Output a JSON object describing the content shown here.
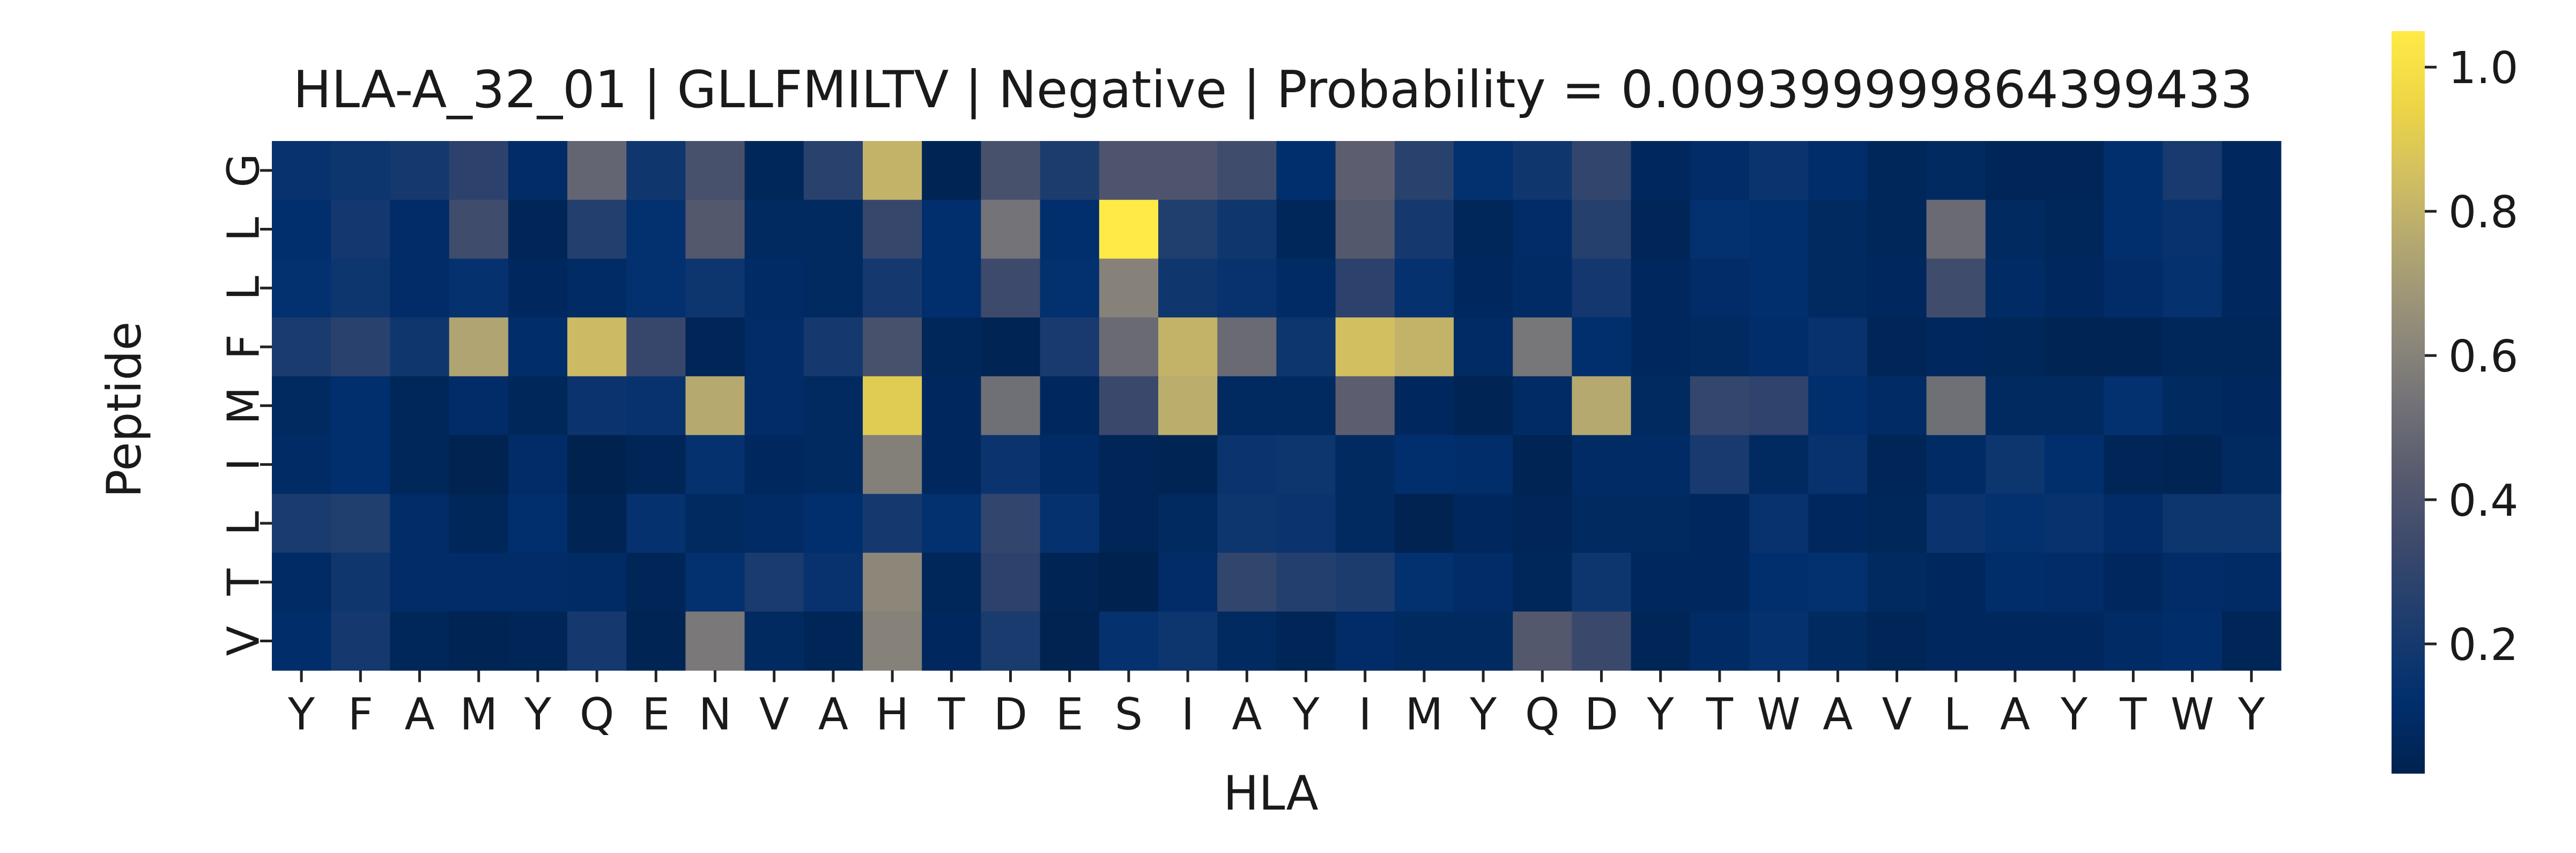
{
  "chart_data": {
    "type": "heatmap",
    "title": "HLA-A_32_01 | GLLFMILTV | Negative | Probability = 0.009399999864399433",
    "xlabel": "HLA",
    "ylabel": "Peptide",
    "x_tick_labels": [
      "Y",
      "F",
      "A",
      "M",
      "Y",
      "Q",
      "E",
      "N",
      "V",
      "A",
      "H",
      "T",
      "D",
      "E",
      "S",
      "I",
      "A",
      "Y",
      "I",
      "M",
      "Y",
      "Q",
      "D",
      "Y",
      "T",
      "W",
      "A",
      "V",
      "L",
      "A",
      "Y",
      "T",
      "W",
      "Y"
    ],
    "y_tick_labels": [
      "G",
      "L",
      "L",
      "F",
      "M",
      "I",
      "L",
      "T",
      "V"
    ],
    "colormap": "cividis",
    "colorbar": {
      "range": [
        0.02,
        1.05
      ],
      "ticks": [
        0.2,
        0.4,
        0.6,
        0.8,
        1.0
      ],
      "tick_labels": [
        "0.2",
        "0.4",
        "0.6",
        "0.8",
        "1.0"
      ]
    },
    "values": [
      [
        0.15,
        0.17,
        0.2,
        0.28,
        0.1,
        0.48,
        0.18,
        0.38,
        0.06,
        0.27,
        0.8,
        0.04,
        0.38,
        0.23,
        0.4,
        0.4,
        0.35,
        0.12,
        0.45,
        0.27,
        0.13,
        0.18,
        0.3,
        0.07,
        0.1,
        0.16,
        0.11,
        0.06,
        0.08,
        0.05,
        0.05,
        0.12,
        0.21,
        0.07
      ],
      [
        0.12,
        0.19,
        0.1,
        0.35,
        0.05,
        0.25,
        0.13,
        0.42,
        0.08,
        0.08,
        0.32,
        0.12,
        0.54,
        0.12,
        1.05,
        0.24,
        0.18,
        0.06,
        0.42,
        0.2,
        0.06,
        0.1,
        0.26,
        0.05,
        0.13,
        0.12,
        0.08,
        0.06,
        0.5,
        0.08,
        0.06,
        0.12,
        0.15,
        0.07
      ],
      [
        0.13,
        0.17,
        0.1,
        0.14,
        0.07,
        0.09,
        0.13,
        0.17,
        0.09,
        0.08,
        0.2,
        0.12,
        0.34,
        0.13,
        0.6,
        0.18,
        0.15,
        0.09,
        0.28,
        0.14,
        0.07,
        0.09,
        0.19,
        0.07,
        0.1,
        0.12,
        0.08,
        0.07,
        0.35,
        0.09,
        0.07,
        0.1,
        0.14,
        0.07
      ],
      [
        0.22,
        0.27,
        0.18,
        0.74,
        0.11,
        0.83,
        0.32,
        0.05,
        0.1,
        0.2,
        0.38,
        0.06,
        0.04,
        0.21,
        0.5,
        0.8,
        0.5,
        0.17,
        0.85,
        0.8,
        0.09,
        0.55,
        0.12,
        0.07,
        0.08,
        0.11,
        0.15,
        0.05,
        0.07,
        0.06,
        0.04,
        0.04,
        0.06,
        0.06
      ],
      [
        0.08,
        0.12,
        0.06,
        0.1,
        0.06,
        0.16,
        0.15,
        0.76,
        0.1,
        0.08,
        0.9,
        0.07,
        0.52,
        0.07,
        0.33,
        0.78,
        0.08,
        0.08,
        0.45,
        0.07,
        0.04,
        0.09,
        0.76,
        0.08,
        0.31,
        0.29,
        0.12,
        0.09,
        0.52,
        0.08,
        0.08,
        0.13,
        0.08,
        0.07
      ],
      [
        0.09,
        0.12,
        0.06,
        0.03,
        0.1,
        0.02,
        0.05,
        0.14,
        0.07,
        0.08,
        0.59,
        0.07,
        0.16,
        0.09,
        0.05,
        0.04,
        0.16,
        0.17,
        0.08,
        0.12,
        0.11,
        0.04,
        0.09,
        0.09,
        0.21,
        0.08,
        0.15,
        0.05,
        0.09,
        0.17,
        0.12,
        0.05,
        0.04,
        0.08
      ],
      [
        0.22,
        0.24,
        0.1,
        0.06,
        0.12,
        0.04,
        0.14,
        0.08,
        0.09,
        0.12,
        0.2,
        0.13,
        0.3,
        0.14,
        0.05,
        0.08,
        0.17,
        0.16,
        0.08,
        0.03,
        0.07,
        0.05,
        0.08,
        0.08,
        0.07,
        0.15,
        0.07,
        0.06,
        0.16,
        0.13,
        0.15,
        0.1,
        0.17,
        0.17
      ],
      [
        0.09,
        0.18,
        0.1,
        0.1,
        0.1,
        0.09,
        0.05,
        0.13,
        0.22,
        0.15,
        0.62,
        0.06,
        0.28,
        0.04,
        0.02,
        0.1,
        0.3,
        0.25,
        0.23,
        0.13,
        0.1,
        0.06,
        0.17,
        0.07,
        0.07,
        0.12,
        0.13,
        0.08,
        0.07,
        0.11,
        0.1,
        0.07,
        0.1,
        0.09
      ],
      [
        0.11,
        0.2,
        0.06,
        0.04,
        0.05,
        0.2,
        0.04,
        0.56,
        0.08,
        0.05,
        0.6,
        0.07,
        0.22,
        0.03,
        0.14,
        0.17,
        0.08,
        0.05,
        0.1,
        0.08,
        0.08,
        0.42,
        0.33,
        0.05,
        0.09,
        0.14,
        0.08,
        0.05,
        0.07,
        0.07,
        0.07,
        0.09,
        0.11,
        0.05
      ]
    ]
  }
}
